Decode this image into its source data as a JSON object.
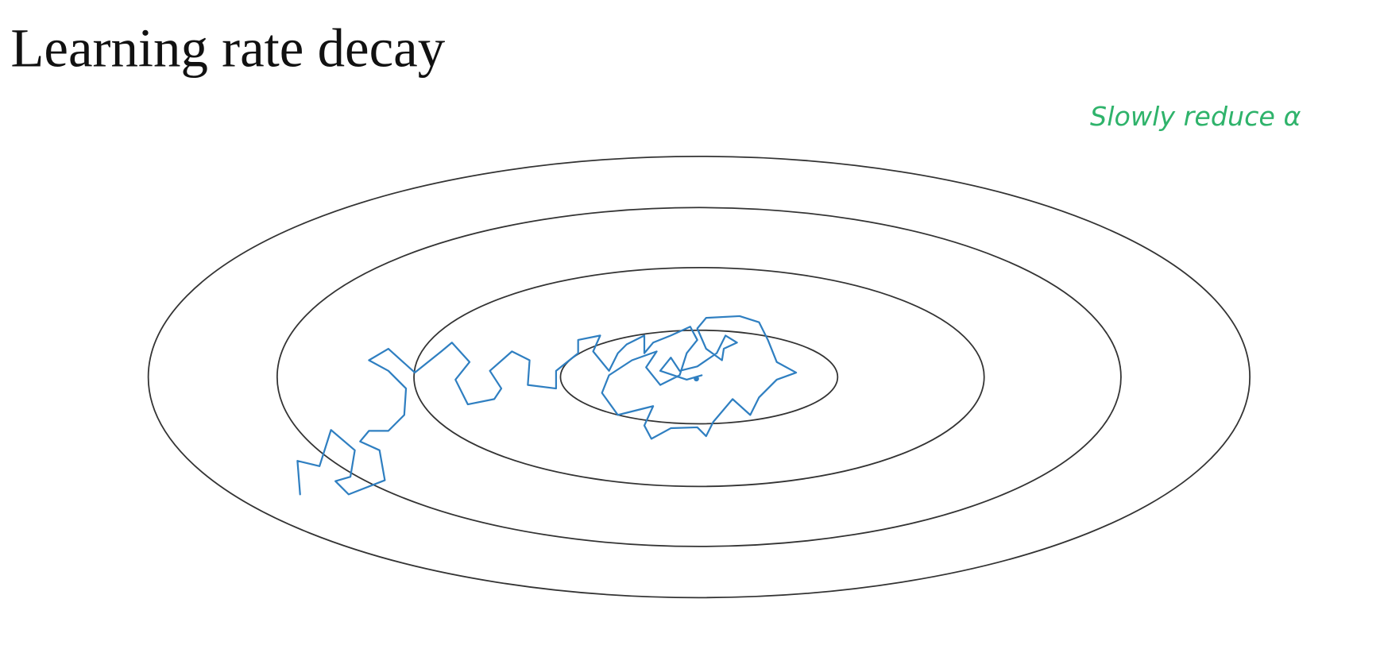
{
  "header": {
    "title": "Learning rate decay"
  },
  "annotation": "Slowly reduce α"
}
